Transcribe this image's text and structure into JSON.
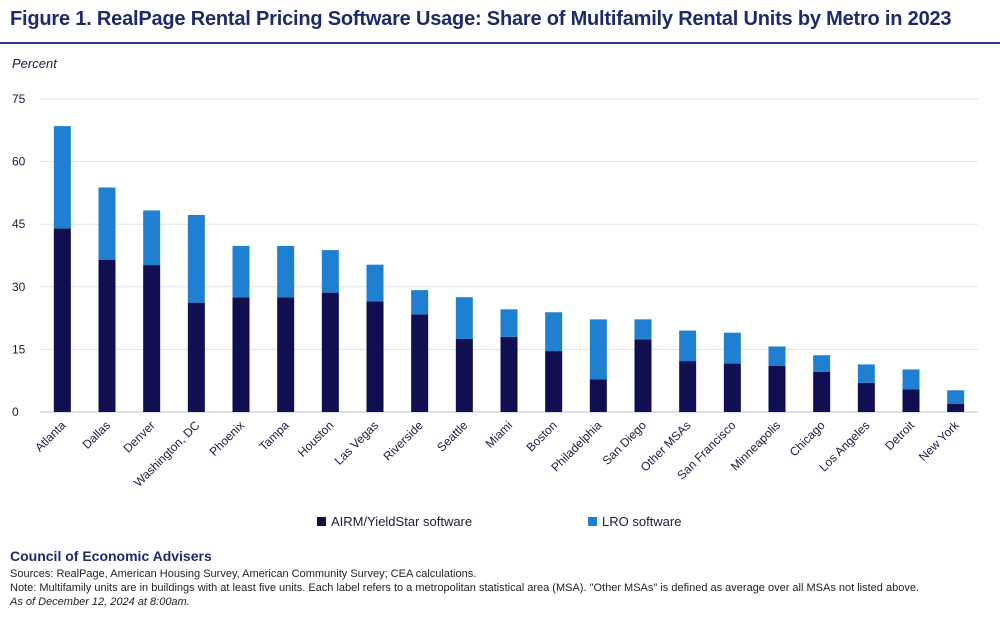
{
  "title": "Figure 1. RealPage Rental Pricing Software Usage: Share of Multifamily Rental Units by Metro in 2023",
  "colors": {
    "accent": "#2b3a8c",
    "airm": "#0f0f52",
    "lro": "#1f7fd0"
  },
  "chart_data": {
    "type": "bar",
    "stacked": true,
    "ylabel": "Percent",
    "ylim": [
      0,
      75
    ],
    "yticks": [
      "75",
      "60",
      "45",
      "30",
      "15",
      "0"
    ],
    "grid": true,
    "legend_position": "bottom",
    "categories": [
      "Atlanta",
      "Dallas",
      "Denver",
      "Washington, DC",
      "Phoenix",
      "Tampa",
      "Houston",
      "Las Vegas",
      "Riverside",
      "Seattle",
      "Miami",
      "Boston",
      "Philadelphia",
      "San Diego",
      "Other MSAs",
      "San Francisco",
      "Minneapolis",
      "Chicago",
      "Los Angeles",
      "Detroit",
      "New York"
    ],
    "series": [
      {
        "name": "AIRM/YieldStar software",
        "color": "#0f0f52",
        "values": [
          44,
          36.5,
          35.2,
          26.2,
          27.5,
          27.5,
          28.6,
          26.5,
          23.4,
          17.5,
          18,
          14.6,
          7.8,
          17.4,
          12.2,
          11.6,
          11.1,
          9.6,
          7,
          5.4,
          2
        ]
      },
      {
        "name": "LRO software",
        "color": "#1f7fd0",
        "values": [
          24.5,
          17.3,
          13.1,
          21,
          12.3,
          12.3,
          10.2,
          8.8,
          5.8,
          10,
          6.6,
          9.3,
          14.4,
          4.8,
          7.3,
          7.4,
          4.6,
          4,
          4.4,
          4.8,
          3.2
        ]
      }
    ]
  },
  "footer": {
    "org": "Council of Economic Advisers",
    "sources": "Sources: RealPage, American Housing Survey, American Community Survey; CEA calculations.",
    "note": "Note: Multifamily units are in buildings with at least five units. Each label refers to a metropolitan statistical area (MSA). \"Other MSAs\" is defined as average over all MSAs not listed above.",
    "date": "As of December 12, 2024 at 8:00am."
  }
}
